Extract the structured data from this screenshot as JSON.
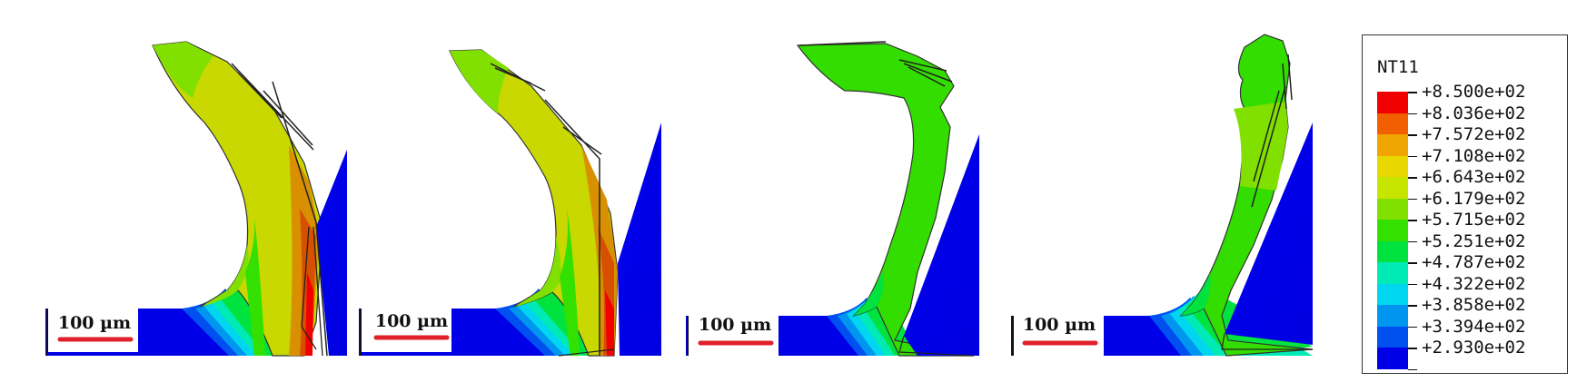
{
  "figure": {
    "panels": [
      {
        "id": "panel-1",
        "scale_label": "100 µm"
      },
      {
        "id": "panel-2",
        "scale_label": "100 µm"
      },
      {
        "id": "panel-3",
        "scale_label": "100 µm"
      },
      {
        "id": "panel-4",
        "scale_label": "100 µm"
      }
    ]
  },
  "legend": {
    "title": "NT11",
    "entries": [
      {
        "value": "+8.500e+02",
        "color": "#f20000"
      },
      {
        "value": "+8.036e+02",
        "color": "#f25f00"
      },
      {
        "value": "+7.572e+02",
        "color": "#f0a500"
      },
      {
        "value": "+7.108e+02",
        "color": "#e9d800"
      },
      {
        "value": "+6.643e+02",
        "color": "#c6e600"
      },
      {
        "value": "+6.179e+02",
        "color": "#82e000"
      },
      {
        "value": "+5.715e+02",
        "color": "#33e000"
      },
      {
        "value": "+5.251e+02",
        "color": "#00e33f"
      },
      {
        "value": "+4.787e+02",
        "color": "#00eab6"
      },
      {
        "value": "+4.322e+02",
        "color": "#00d6f0"
      },
      {
        "value": "+3.858e+02",
        "color": "#0096f0"
      },
      {
        "value": "+3.394e+02",
        "color": "#0050f0"
      },
      {
        "value": "+2.930e+02",
        "color": "#0000e8"
      }
    ]
  }
}
